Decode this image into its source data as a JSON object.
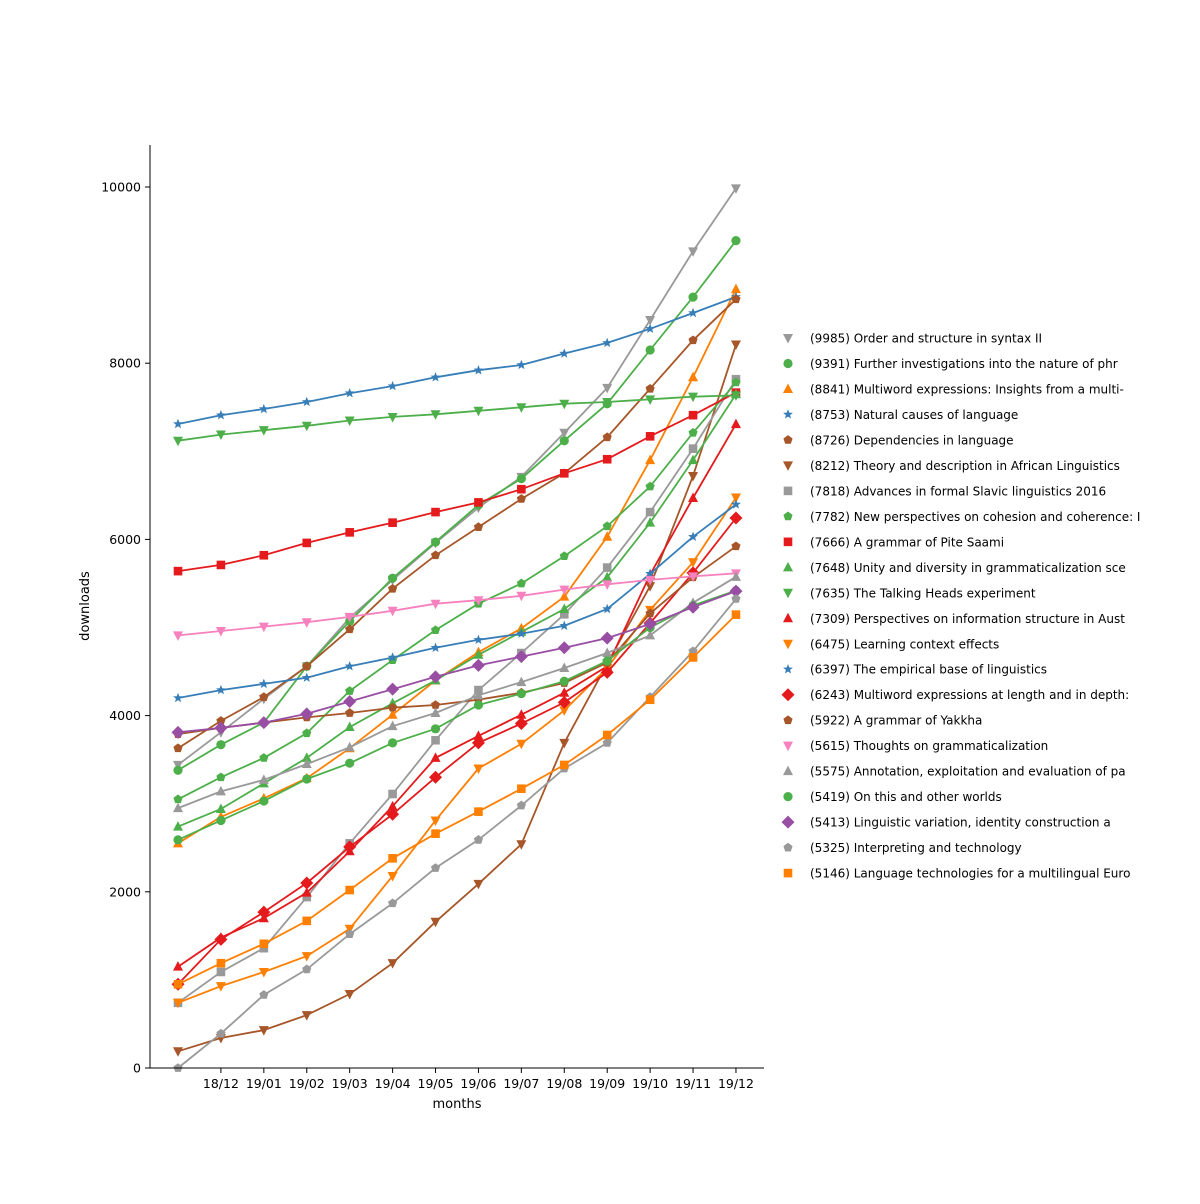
{
  "chart_data": {
    "type": "line",
    "title": "",
    "xlabel": "months",
    "ylabel": "downloads",
    "categories": [
      "",
      "18/12",
      "19/01",
      "19/02",
      "19/03",
      "19/04",
      "19/05",
      "19/06",
      "19/07",
      "19/08",
      "19/09",
      "19/10",
      "19/11",
      "19/12"
    ],
    "ylim": [
      0,
      10480
    ],
    "yticks": [
      0,
      2000,
      4000,
      6000,
      8000,
      10000
    ],
    "grid": false,
    "legend_placement": "right",
    "series": [
      {
        "name": "(9985) Order and structure in syntax II",
        "color": "#999999",
        "marker": "v",
        "values": [
          3440,
          3810,
          4190,
          4560,
          5110,
          5540,
          5960,
          6360,
          6710,
          7210,
          7720,
          8490,
          9270,
          9985
        ]
      },
      {
        "name": "(9391) Further investigations into the nature of phr",
        "color": "#4daf4a",
        "marker": "o",
        "values": [
          3380,
          3670,
          3920,
          4560,
          5070,
          5560,
          5970,
          6390,
          6690,
          7120,
          7540,
          8150,
          8750,
          9391
        ]
      },
      {
        "name": "(8841) Multiword expressions: Insights from a multi-",
        "color": "#ff7f00",
        "marker": "^",
        "values": [
          2550,
          2850,
          3060,
          3290,
          3630,
          4010,
          4400,
          4720,
          4990,
          5350,
          6030,
          6900,
          7840,
          8841
        ]
      },
      {
        "name": "(8753) Natural causes of language",
        "color": "#377eb8",
        "marker": "*",
        "values": [
          7310,
          7410,
          7480,
          7560,
          7660,
          7740,
          7840,
          7920,
          7980,
          8110,
          8230,
          8390,
          8570,
          8753
        ]
      },
      {
        "name": "(8726) Dependencies in language",
        "color": "#a65628",
        "marker": "p",
        "values": [
          3630,
          3940,
          4210,
          4560,
          4980,
          5440,
          5820,
          6140,
          6460,
          6750,
          7160,
          7710,
          8260,
          8726
        ]
      },
      {
        "name": "(8212) Theory and description in African Linguistics",
        "color": "#a65628",
        "marker": "v",
        "values": [
          190,
          340,
          430,
          600,
          840,
          1190,
          1660,
          2090,
          2540,
          3690,
          4590,
          5470,
          6720,
          8212
        ]
      },
      {
        "name": "(7818) Advances in formal Slavic linguistics 2016",
        "color": "#999999",
        "marker": "s",
        "values": [
          740,
          1090,
          1360,
          1940,
          2550,
          3110,
          3720,
          4290,
          4710,
          5150,
          5680,
          6310,
          7030,
          7818
        ]
      },
      {
        "name": "(7782) New perspectives on cohesion and coherence: I",
        "color": "#4daf4a",
        "marker": "p",
        "values": [
          3050,
          3300,
          3520,
          3800,
          4280,
          4630,
          4970,
          5270,
          5500,
          5810,
          6150,
          6600,
          7210,
          7782
        ]
      },
      {
        "name": "(7666) A grammar of Pite Saami",
        "color": "#e41a1c",
        "marker": "s",
        "values": [
          5640,
          5710,
          5820,
          5960,
          6080,
          6190,
          6310,
          6420,
          6570,
          6750,
          6910,
          7170,
          7410,
          7666
        ]
      },
      {
        "name": "(7648) Unity and diversity in grammaticalization sce",
        "color": "#4daf4a",
        "marker": "^",
        "values": [
          2740,
          2940,
          3230,
          3520,
          3870,
          4140,
          4400,
          4690,
          4950,
          5210,
          5570,
          6190,
          6900,
          7648
        ]
      },
      {
        "name": "(7635) The Talking Heads experiment",
        "color": "#4daf4a",
        "marker": "v",
        "values": [
          7120,
          7190,
          7240,
          7290,
          7350,
          7390,
          7420,
          7460,
          7500,
          7540,
          7560,
          7590,
          7620,
          7635
        ]
      },
      {
        "name": "(7309) Perspectives on information structure in Aust",
        "color": "#e41a1c",
        "marker": "^",
        "values": [
          1150,
          1480,
          1700,
          1990,
          2460,
          2970,
          3520,
          3770,
          4010,
          4260,
          4560,
          5600,
          6470,
          7309
        ]
      },
      {
        "name": "(6475) Learning context effects",
        "color": "#ff7f00",
        "marker": "v",
        "values": [
          740,
          930,
          1090,
          1270,
          1580,
          2180,
          2810,
          3400,
          3680,
          4060,
          4540,
          5200,
          5740,
          6475
        ]
      },
      {
        "name": "(6397) The empirical base of linguistics",
        "color": "#377eb8",
        "marker": "*",
        "values": [
          4200,
          4290,
          4360,
          4430,
          4560,
          4660,
          4770,
          4860,
          4930,
          5020,
          5210,
          5610,
          6030,
          6397
        ]
      },
      {
        "name": "(6243) Multiword expressions at length and in depth:",
        "color": "#e41a1c",
        "marker": "D",
        "values": [
          950,
          1460,
          1770,
          2100,
          2510,
          2880,
          3300,
          3690,
          3910,
          4150,
          4490,
          5050,
          5620,
          6243
        ]
      },
      {
        "name": "(5922) A grammar of Yakkha",
        "color": "#a65628",
        "marker": "p",
        "values": [
          3790,
          3860,
          3920,
          3980,
          4030,
          4090,
          4120,
          4180,
          4260,
          4370,
          4600,
          5160,
          5570,
          5922
        ]
      },
      {
        "name": "(5615) Thoughts on grammaticalization",
        "color": "#f781bf",
        "marker": "v",
        "values": [
          4910,
          4960,
          5010,
          5060,
          5120,
          5190,
          5270,
          5310,
          5360,
          5430,
          5490,
          5540,
          5580,
          5615
        ]
      },
      {
        "name": "(5575) Annotation, exploitation and evaluation of pa",
        "color": "#999999",
        "marker": "^",
        "values": [
          2950,
          3140,
          3270,
          3450,
          3640,
          3880,
          4030,
          4230,
          4380,
          4540,
          4710,
          4910,
          5280,
          5575
        ]
      },
      {
        "name": "(5419) On this and other worlds",
        "color": "#4daf4a",
        "marker": "o",
        "values": [
          2590,
          2810,
          3030,
          3280,
          3460,
          3690,
          3850,
          4120,
          4250,
          4390,
          4620,
          5000,
          5250,
          5419
        ]
      },
      {
        "name": "(5413) Linguistic variation, identity construction a",
        "color": "#984ea3",
        "marker": "D",
        "values": [
          3810,
          3860,
          3920,
          4020,
          4160,
          4300,
          4440,
          4570,
          4670,
          4770,
          4880,
          5040,
          5230,
          5413
        ]
      },
      {
        "name": "(5325) Interpreting and technology",
        "color": "#999999",
        "marker": "p",
        "values": [
          0,
          390,
          830,
          1120,
          1520,
          1870,
          2270,
          2590,
          2980,
          3400,
          3690,
          4210,
          4730,
          5325
        ]
      },
      {
        "name": "(5146) Language technologies for a multilingual Euro",
        "color": "#ff7f00",
        "marker": "s",
        "values": [
          950,
          1190,
          1410,
          1670,
          2020,
          2380,
          2660,
          2910,
          3170,
          3440,
          3780,
          4180,
          4660,
          5146
        ]
      }
    ]
  }
}
